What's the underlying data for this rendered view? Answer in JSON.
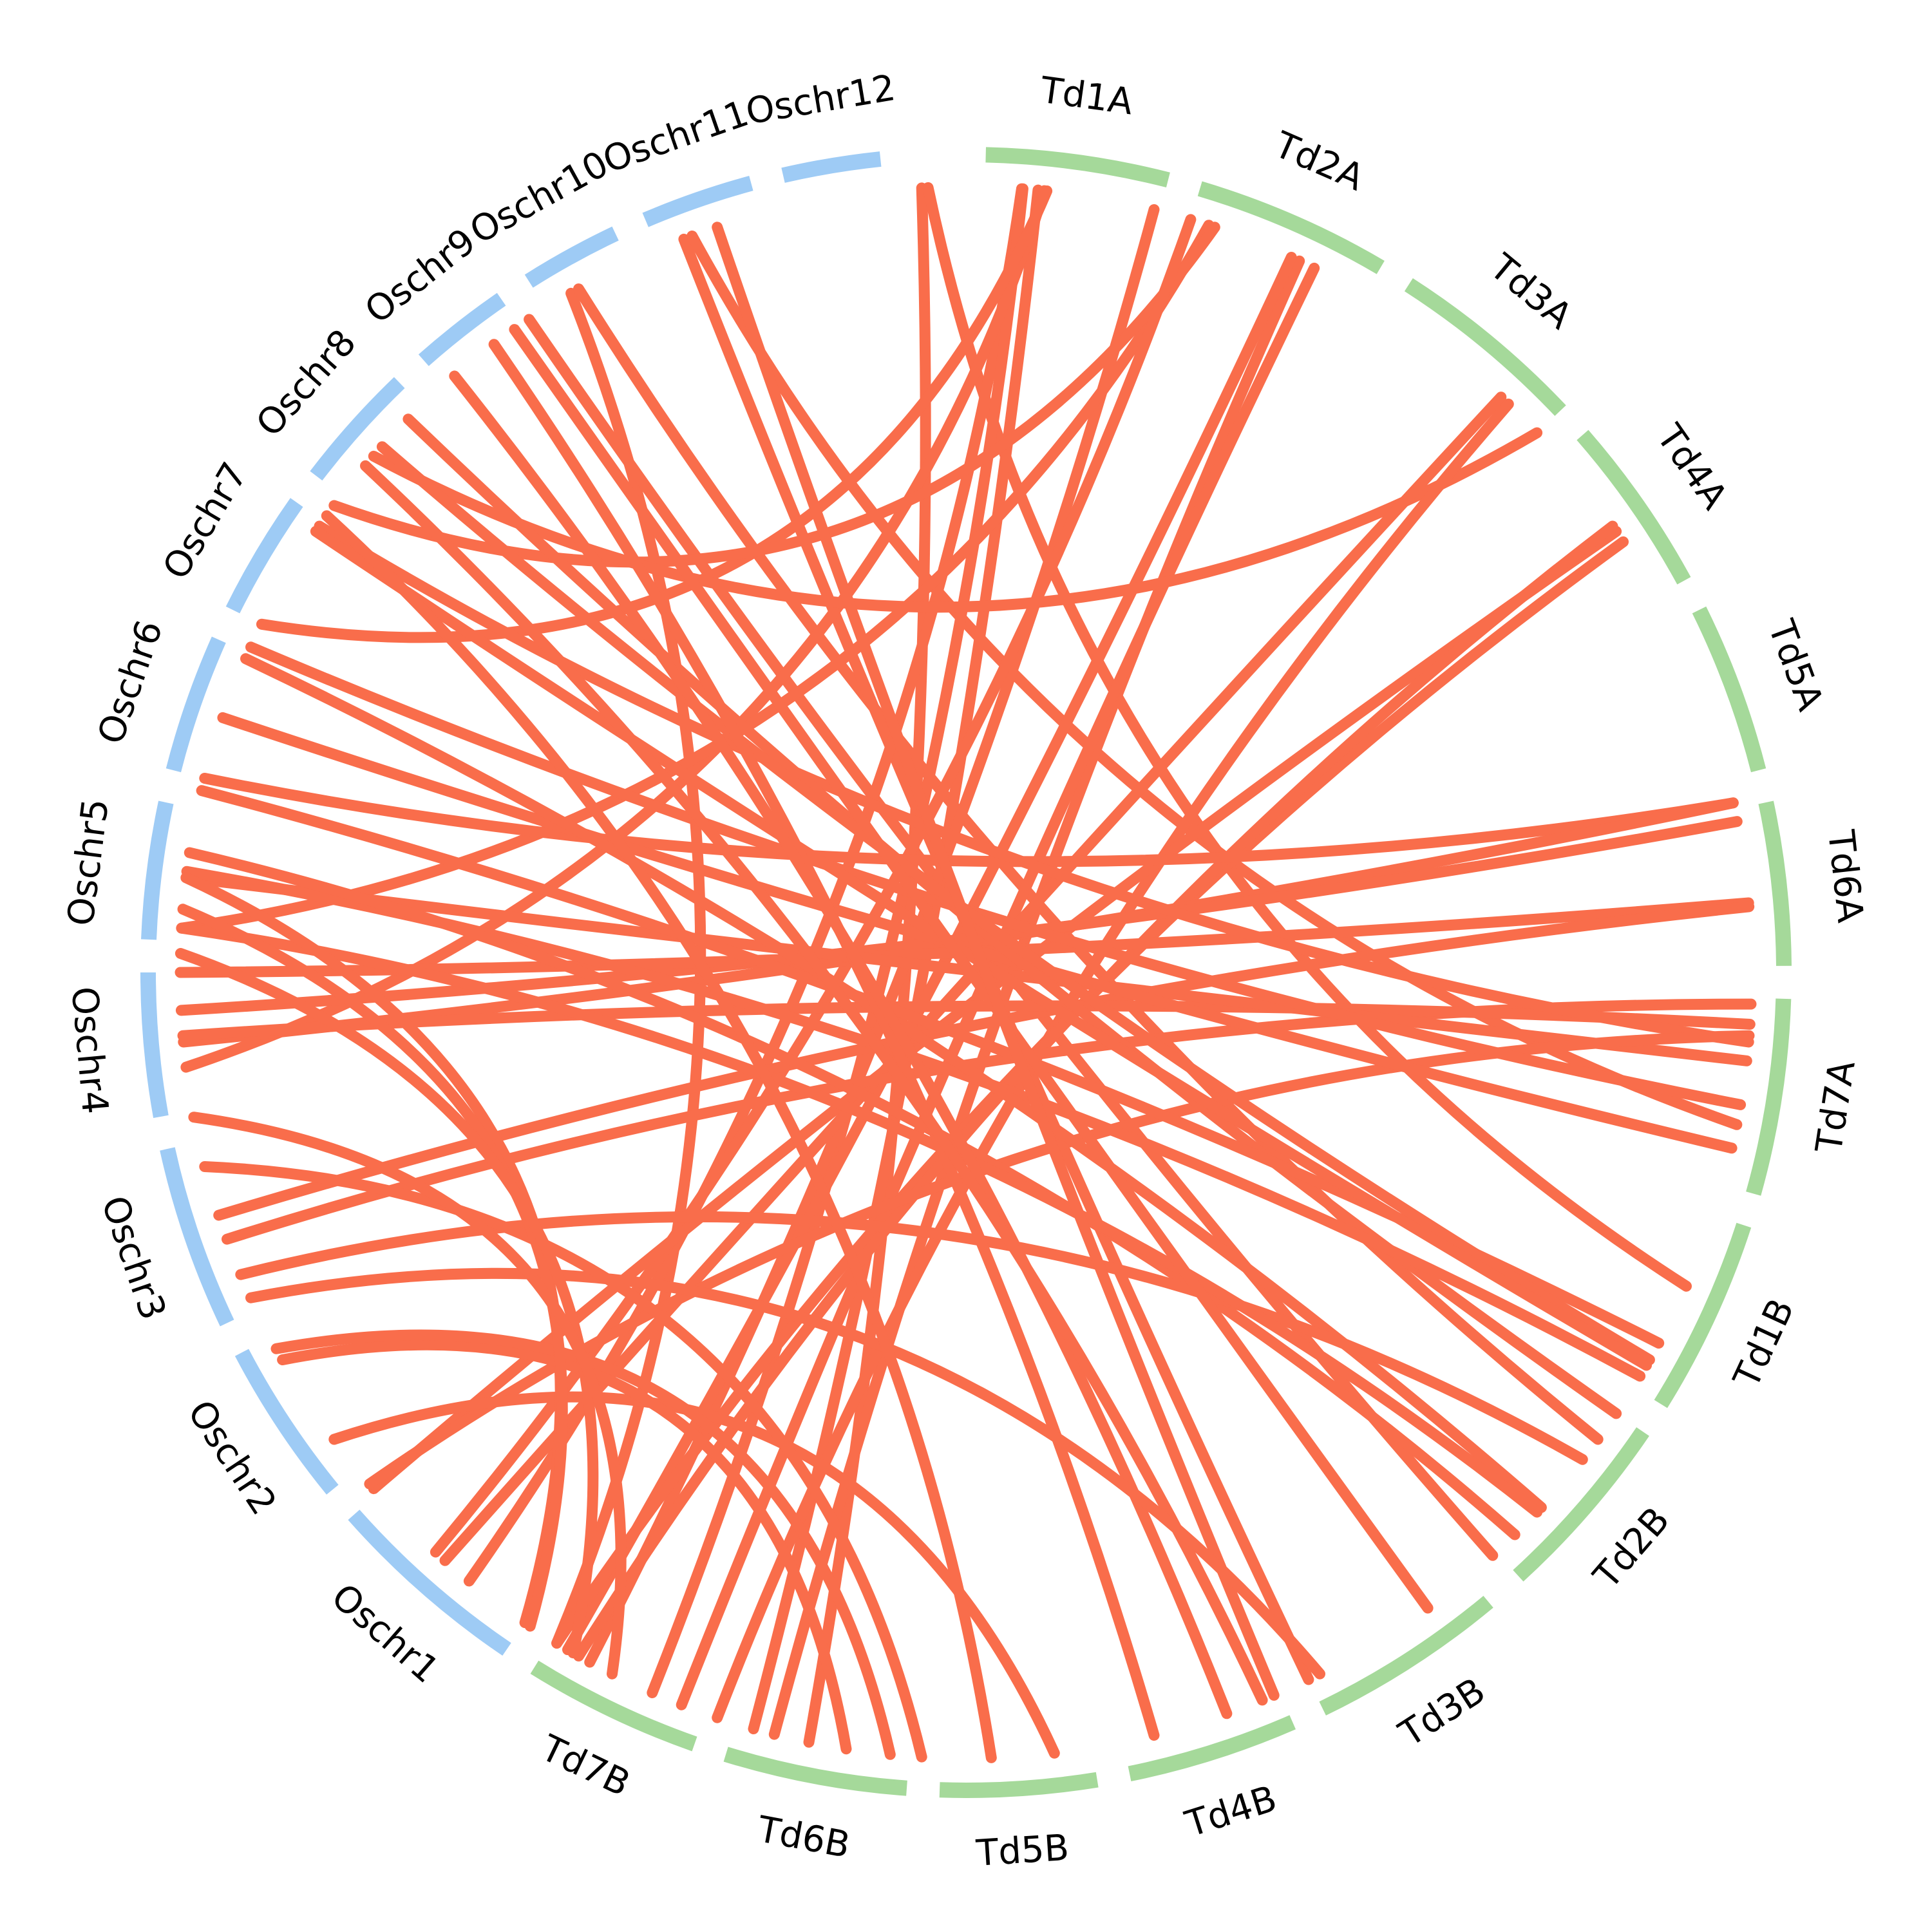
{
  "colors": {
    "rice": "#9ecbf5",
    "wheat": "#a5d99a",
    "link": "#f96d4b",
    "label": "#000000"
  },
  "chromosomes": [
    {
      "id": "Td1A",
      "label": "Td1A",
      "group": "wheat",
      "start": 1.5,
      "end": 15.5
    },
    {
      "id": "Td2A",
      "label": "Td2A",
      "group": "wheat",
      "start": 18.0,
      "end": 33.0
    },
    {
      "id": "Td3A",
      "label": "Td3A",
      "group": "wheat",
      "start": 35.5,
      "end": 50.5
    },
    {
      "id": "Td4A",
      "label": "Td4A",
      "group": "wheat",
      "start": 53.0,
      "end": 66.5
    },
    {
      "id": "Td5A",
      "label": "Td5A",
      "group": "wheat",
      "start": 69.0,
      "end": 82.0
    },
    {
      "id": "Td6A",
      "label": "Td6A",
      "group": "wheat",
      "start": 84.5,
      "end": 97.0
    },
    {
      "id": "Td7A",
      "label": "Td7A",
      "group": "wheat",
      "start": 99.5,
      "end": 114.5
    },
    {
      "id": "Td1B",
      "label": "Td1B",
      "group": "wheat",
      "start": 117.0,
      "end": 132.0
    },
    {
      "id": "Td2B",
      "label": "Td2B",
      "group": "wheat",
      "start": 134.5,
      "end": 149.0
    },
    {
      "id": "Td3B",
      "label": "Td3B",
      "group": "wheat",
      "start": 152.0,
      "end": 167.0
    },
    {
      "id": "Td4B",
      "label": "Td4B",
      "group": "wheat",
      "start": 169.5,
      "end": 182.5
    },
    {
      "id": "Td5B",
      "label": "Td5B",
      "group": "wheat",
      "start": 185.0,
      "end": 197.0
    },
    {
      "id": "Td6B",
      "label": "Td6B",
      "group": "wheat",
      "start": 199.5,
      "end": 213.5
    },
    {
      "id": "Td7B",
      "label": "Td7B",
      "group": "wheat",
      "start": 216.0,
      "end": 229.5
    },
    {
      "id": "Oschr1",
      "label": "Oschr1",
      "group": "rice",
      "start": 232.0,
      "end": 247.5
    },
    {
      "id": "Oschr2",
      "label": "Oschr2",
      "group": "rice",
      "start": 250.0,
      "end": 262.5
    },
    {
      "id": "Oschr3",
      "label": "Oschr3",
      "group": "rice",
      "start": 265.0,
      "end": 279.0
    },
    {
      "id": "Oschr4",
      "label": "Oschr4",
      "group": "rice",
      "start": 281.5,
      "end": 292.5
    },
    {
      "id": "Oschr5",
      "label": "Oschr5",
      "group": "rice",
      "start": 295.0,
      "end": 305.5
    },
    {
      "id": "Oschr6",
      "label": "Oschr6",
      "group": "rice",
      "start": 308.0,
      "end": 318.5
    },
    {
      "id": "Oschr7",
      "label": "Oschr7",
      "group": "rice",
      "start": 321.0,
      "end": 330.5
    },
    {
      "id": "Oschr8",
      "label": "Oschr8",
      "group": "rice",
      "start": 333.0,
      "end": 342.5
    },
    {
      "id": "Oschr9",
      "label": "Oschr9",
      "group": "rice",
      "start": 345.0,
      "end": 352.5
    },
    {
      "id": "Oschr10",
      "label": "Oschr10",
      "group": "rice",
      "start": 355.0,
      "end": 362.5
    },
    {
      "id": "Oschr11",
      "label": "Oschr11",
      "group": "rice",
      "start": 365.0,
      "end": 373.5
    },
    {
      "id": "Oschr12",
      "label": "Oschr12",
      "group": "rice",
      "start": 376.0,
      "end": 383.5
    }
  ],
  "links": [
    [
      357.3,
      229.0
    ],
    [
      358.0,
      137.0
    ],
    [
      353.4,
      149.4
    ],
    [
      367.2,
      167.0
    ],
    [
      367.9,
      109.6
    ],
    [
      386.5,
      207.5
    ],
    [
      387.0,
      123.0
    ],
    [
      4.4,
      237.5
    ],
    [
      5.7,
      212.0
    ],
    [
      4.5,
      220.5
    ],
    [
      6.2,
      285.0
    ],
    [
      6.4,
      321.0
    ],
    [
      15.0,
      226.0
    ],
    [
      19.5,
      296.0
    ],
    [
      20.0,
      332.0
    ],
    [
      18.0,
      241.0
    ],
    [
      27.2,
      210.3
    ],
    [
      26.5,
      228.0
    ],
    [
      28.5,
      218.0
    ],
    [
      50.5,
      337.0
    ],
    [
      46.5,
      240.0
    ],
    [
      47.3,
      215.0
    ],
    [
      60.5,
      248.0
    ],
    [
      61.5,
      229.0
    ],
    [
      60.0,
      227.0
    ],
    [
      84.0,
      308.0
    ],
    [
      84.0,
      287.0
    ],
    [
      85.5,
      289.5
    ],
    [
      92.0,
      292.5
    ],
    [
      92.3,
      273.0
    ],
    [
      100.0,
      271.0
    ],
    [
      101.6,
      287.5
    ],
    [
      103.0,
      330.0
    ],
    [
      104.5,
      300.0
    ],
    [
      102.5,
      248.5
    ],
    [
      108.0,
      319.0
    ],
    [
      111.5,
      313.0
    ],
    [
      134.5,
      341.0
    ],
    [
      131.0,
      300.5
    ],
    [
      128.0,
      307.0
    ],
    [
      129.5,
      338.0
    ],
    [
      130.0,
      329.5
    ],
    [
      144.0,
      318.0
    ],
    [
      147.0,
      302.0
    ],
    [
      139.0,
      268.0
    ],
    [
      144.5,
      296.0
    ],
    [
      156.0,
      352.0
    ],
    [
      180.0,
      350.0
    ],
    [
      174.0,
      346.0
    ],
    [
      170.0,
      370.0
    ],
    [
      171.0,
      336.0
    ],
    [
      166.0,
      266.0
    ],
    [
      188.0,
      253.0
    ],
    [
      198.5,
      277.0
    ],
    [
      204.5,
      260.5
    ],
    [
      201.0,
      261.5
    ],
    [
      193.0,
      331.0
    ],
    [
      232.0,
      300.0
    ],
    [
      231.5,
      297.5
    ],
    [
      227.5,
      294.0
    ],
    [
      224.0,
      281.0
    ]
  ]
}
